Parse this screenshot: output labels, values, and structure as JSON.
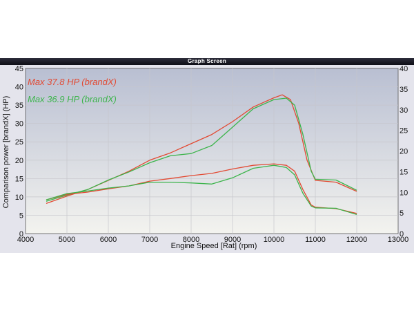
{
  "window": {
    "title": "Graph Screen"
  },
  "colors": {
    "series1": "#e24a33",
    "series2": "#3cb44b",
    "plot_bg_top": "#b9bfd2",
    "plot_bg_bottom": "#f3f3ef",
    "grid": "#c6c6cc"
  },
  "chart_data": {
    "type": "line",
    "xlabel": "Engine Speed [Rat] (rpm)",
    "ylabel": "Comparison power [brandX] (HP)",
    "xlim": [
      4000,
      13000
    ],
    "ylim": [
      0,
      45
    ],
    "y2lim": [
      0,
      40
    ],
    "xticks": [
      "4000",
      "5000",
      "6000",
      "7000",
      "8000",
      "9000",
      "10000",
      "11000",
      "12000",
      "13000"
    ],
    "yticks": [
      "0",
      "5",
      "10",
      "15",
      "20",
      "25",
      "30",
      "35",
      "40",
      "45"
    ],
    "y2ticks": [
      "0",
      "5",
      "10",
      "15",
      "20",
      "25",
      "30",
      "35",
      "40"
    ],
    "grid": true,
    "legend": [
      "Max 37.8 HP (brandX)",
      "Max 36.9 HP (brandX)"
    ],
    "series": [
      {
        "name": "Max 37.8 HP (brandX)",
        "color": "#e24a33",
        "points": [
          [
            4500,
            8.2
          ],
          [
            5000,
            10.2
          ],
          [
            5500,
            12.0
          ],
          [
            6000,
            14.5
          ],
          [
            6500,
            17.0
          ],
          [
            7000,
            20.0
          ],
          [
            7500,
            22.0
          ],
          [
            8000,
            24.5
          ],
          [
            8500,
            27.0
          ],
          [
            9000,
            30.5
          ],
          [
            9500,
            34.5
          ],
          [
            10000,
            37.0
          ],
          [
            10200,
            37.8
          ],
          [
            10400,
            36.5
          ],
          [
            10600,
            30.0
          ],
          [
            10800,
            20.0
          ],
          [
            11000,
            14.5
          ],
          [
            11500,
            14.0
          ],
          [
            12000,
            11.5
          ]
        ]
      },
      {
        "name": "Max 36.9 HP (brandX)",
        "color": "#3cb44b",
        "points": [
          [
            4500,
            8.8
          ],
          [
            5000,
            10.5
          ],
          [
            5500,
            12.0
          ],
          [
            6000,
            14.6
          ],
          [
            6500,
            16.8
          ],
          [
            7000,
            19.3
          ],
          [
            7500,
            21.2
          ],
          [
            8000,
            21.8
          ],
          [
            8500,
            24.0
          ],
          [
            9000,
            29.0
          ],
          [
            9500,
            34.0
          ],
          [
            10000,
            36.5
          ],
          [
            10300,
            36.9
          ],
          [
            10500,
            35.0
          ],
          [
            10700,
            27.0
          ],
          [
            10900,
            17.0
          ],
          [
            11000,
            14.8
          ],
          [
            11500,
            14.6
          ],
          [
            12000,
            11.8
          ]
        ]
      },
      {
        "name": "",
        "color": "#e24a33",
        "points": [
          [
            4500,
            9.2
          ],
          [
            5000,
            10.7
          ],
          [
            5500,
            11.3
          ],
          [
            6000,
            12.2
          ],
          [
            6500,
            13.0
          ],
          [
            7000,
            14.3
          ],
          [
            7500,
            15.0
          ],
          [
            8000,
            15.8
          ],
          [
            8500,
            16.4
          ],
          [
            9000,
            17.6
          ],
          [
            9500,
            18.6
          ],
          [
            10000,
            19.0
          ],
          [
            10300,
            18.6
          ],
          [
            10500,
            17.0
          ],
          [
            10700,
            12.0
          ],
          [
            10900,
            7.8
          ],
          [
            11000,
            7.2
          ],
          [
            11500,
            6.8
          ],
          [
            12000,
            5.5
          ]
        ]
      },
      {
        "name": "",
        "color": "#3cb44b",
        "points": [
          [
            4500,
            9.2
          ],
          [
            5000,
            10.9
          ],
          [
            5500,
            11.6
          ],
          [
            6000,
            12.4
          ],
          [
            6500,
            13.0
          ],
          [
            7000,
            14.0
          ],
          [
            7500,
            14.0
          ],
          [
            8000,
            13.8
          ],
          [
            8500,
            13.5
          ],
          [
            9000,
            15.2
          ],
          [
            9500,
            17.8
          ],
          [
            10000,
            18.6
          ],
          [
            10300,
            18.0
          ],
          [
            10500,
            16.0
          ],
          [
            10700,
            11.0
          ],
          [
            10900,
            7.5
          ],
          [
            11000,
            7.0
          ],
          [
            11500,
            6.9
          ],
          [
            12000,
            5.2
          ]
        ]
      }
    ]
  }
}
